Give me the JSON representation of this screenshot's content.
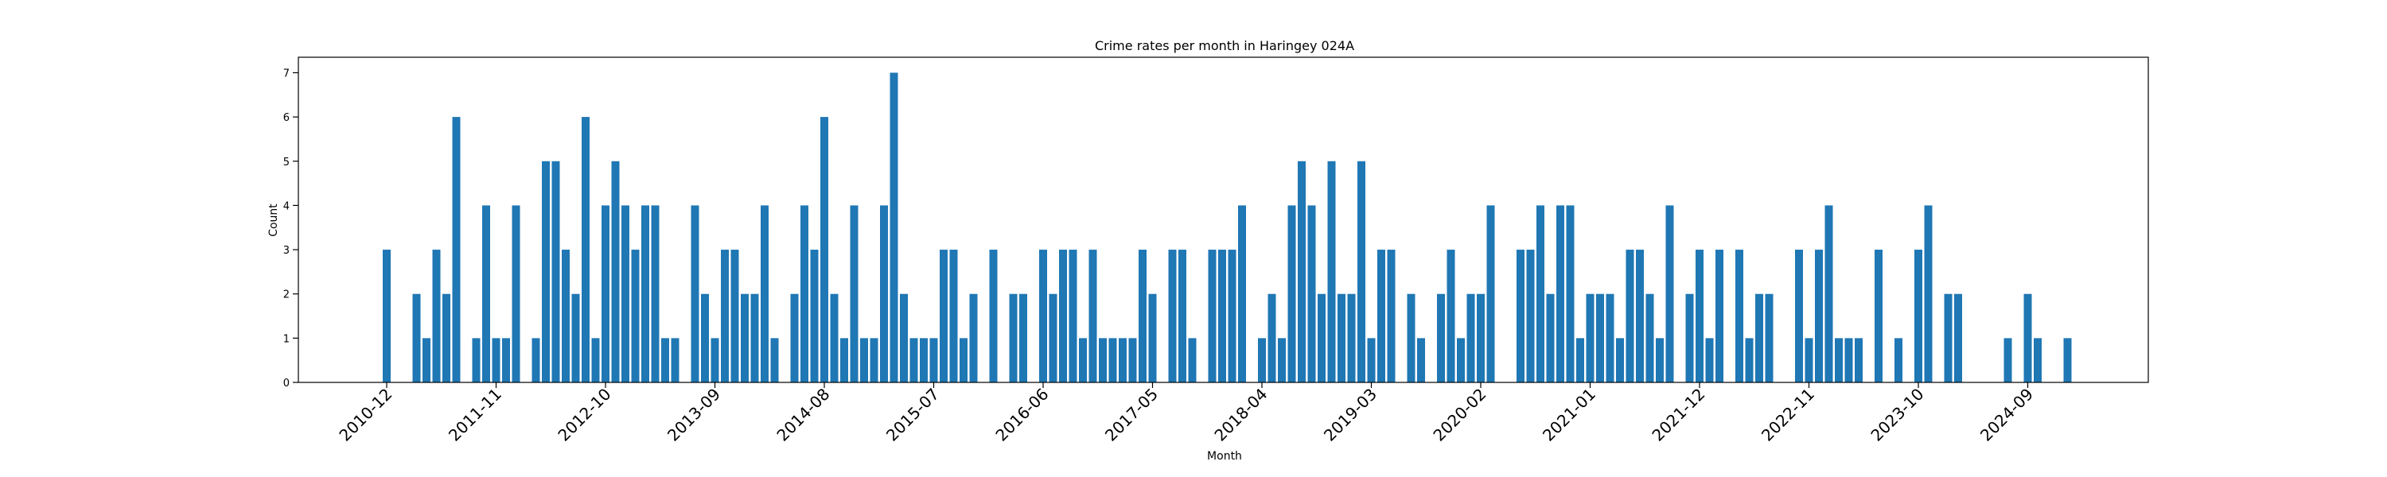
{
  "chart_data": {
    "type": "bar",
    "title": "Crime rates per month in Haringey 024A",
    "xlabel": "Month",
    "ylabel": "Count",
    "ylim": [
      0,
      7.35
    ],
    "yticks": [
      0,
      1,
      2,
      3,
      4,
      5,
      6,
      7
    ],
    "xticks": [
      "2010-12",
      "2011-11",
      "2012-10",
      "2013-09",
      "2014-08",
      "2015-07",
      "2016-06",
      "2017-05",
      "2018-04",
      "2019-03",
      "2020-02",
      "2021-01",
      "2021-12",
      "2022-11",
      "2023-10",
      "2024-09"
    ],
    "grid": false,
    "bar_color": "#1f77b4",
    "categories": [
      "2010-12",
      "2011-01",
      "2011-02",
      "2011-03",
      "2011-04",
      "2011-05",
      "2011-06",
      "2011-07",
      "2011-08",
      "2011-09",
      "2011-10",
      "2011-11",
      "2011-12",
      "2012-01",
      "2012-02",
      "2012-03",
      "2012-04",
      "2012-05",
      "2012-06",
      "2012-07",
      "2012-08",
      "2012-09",
      "2012-10",
      "2012-11",
      "2012-12",
      "2013-01",
      "2013-02",
      "2013-03",
      "2013-04",
      "2013-05",
      "2013-06",
      "2013-07",
      "2013-08",
      "2013-09",
      "2013-10",
      "2013-11",
      "2013-12",
      "2014-01",
      "2014-02",
      "2014-03",
      "2014-04",
      "2014-05",
      "2014-06",
      "2014-07",
      "2014-08",
      "2014-09",
      "2014-10",
      "2014-11",
      "2014-12",
      "2015-01",
      "2015-02",
      "2015-03",
      "2015-04",
      "2015-05",
      "2015-06",
      "2015-07",
      "2015-08",
      "2015-09",
      "2015-10",
      "2015-11",
      "2015-12",
      "2016-01",
      "2016-02",
      "2016-03",
      "2016-04",
      "2016-05",
      "2016-06",
      "2016-07",
      "2016-08",
      "2016-09",
      "2016-10",
      "2016-11",
      "2016-12",
      "2017-01",
      "2017-02",
      "2017-03",
      "2017-04",
      "2017-05",
      "2017-06",
      "2017-07",
      "2017-08",
      "2017-09",
      "2017-10",
      "2017-11",
      "2017-12",
      "2018-01",
      "2018-02",
      "2018-03",
      "2018-04",
      "2018-05",
      "2018-06",
      "2018-07",
      "2018-08",
      "2018-09",
      "2018-10",
      "2018-11",
      "2018-12",
      "2019-01",
      "2019-02",
      "2019-03",
      "2019-04",
      "2019-05",
      "2019-06",
      "2019-07",
      "2019-08",
      "2019-09",
      "2019-10",
      "2019-11",
      "2019-12",
      "2020-01",
      "2020-02",
      "2020-03",
      "2020-04",
      "2020-05",
      "2020-06",
      "2020-07",
      "2020-08",
      "2020-09",
      "2020-10",
      "2020-11",
      "2020-12",
      "2021-01",
      "2021-02",
      "2021-03",
      "2021-04",
      "2021-05",
      "2021-06",
      "2021-07",
      "2021-08",
      "2021-09",
      "2021-10",
      "2021-11",
      "2021-12",
      "2022-01",
      "2022-02",
      "2022-03",
      "2022-04",
      "2022-05",
      "2022-06",
      "2022-07",
      "2022-08",
      "2022-09",
      "2022-10",
      "2022-11",
      "2022-12",
      "2023-01",
      "2023-02",
      "2023-03",
      "2023-04",
      "2023-05",
      "2023-06",
      "2023-07",
      "2023-08",
      "2023-09",
      "2023-10",
      "2023-11",
      "2023-12",
      "2024-01",
      "2024-02",
      "2024-03",
      "2024-04",
      "2024-05",
      "2024-06",
      "2024-07",
      "2024-08",
      "2024-09",
      "2024-10",
      "2024-11",
      "2024-12",
      "2025-01",
      "2025-02",
      "2025-03",
      "2025-04"
    ],
    "values": [
      3,
      0,
      0,
      2,
      1,
      3,
      2,
      6,
      0,
      1,
      4,
      1,
      1,
      4,
      0,
      1,
      5,
      5,
      3,
      2,
      6,
      1,
      4,
      5,
      4,
      3,
      4,
      4,
      1,
      1,
      0,
      4,
      2,
      1,
      3,
      3,
      2,
      2,
      4,
      1,
      0,
      2,
      4,
      3,
      6,
      2,
      1,
      4,
      1,
      1,
      4,
      7,
      2,
      1,
      1,
      1,
      3,
      3,
      1,
      2,
      0,
      3,
      0,
      2,
      2,
      0,
      3,
      2,
      3,
      3,
      1,
      3,
      1,
      1,
      1,
      1,
      3,
      2,
      0,
      3,
      3,
      1,
      0,
      3,
      3,
      3,
      4,
      0,
      1,
      2,
      1,
      4,
      5,
      4,
      2,
      5,
      2,
      2,
      5,
      1,
      3,
      3,
      0,
      2,
      1,
      0,
      2,
      3,
      1,
      2,
      2,
      4,
      0,
      0,
      3,
      3,
      4,
      2,
      4,
      4,
      1,
      2,
      2,
      2,
      1,
      3,
      3,
      2,
      1,
      4,
      0,
      2,
      3,
      1,
      3,
      0,
      3,
      1,
      2,
      2,
      0,
      0,
      3,
      1,
      3,
      4,
      1,
      1,
      1,
      0,
      3,
      0,
      1,
      0,
      3,
      4,
      0,
      2,
      2,
      0,
      0,
      0,
      0,
      1,
      0,
      2,
      1,
      0,
      0,
      1,
      0,
      0,
      0
    ]
  }
}
